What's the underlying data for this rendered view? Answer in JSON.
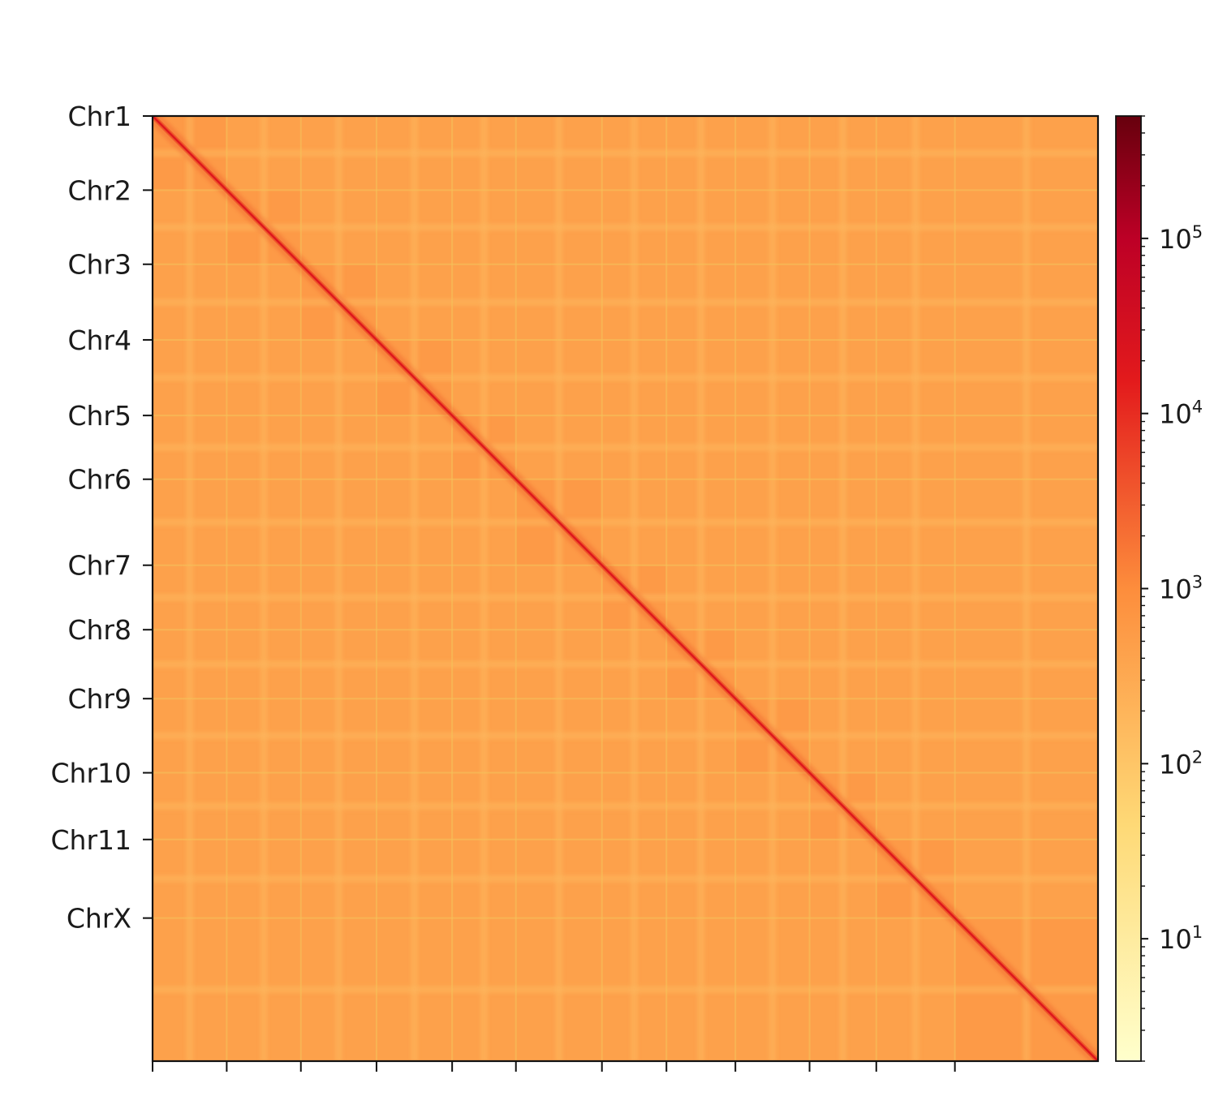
{
  "chart_data": {
    "type": "heatmap",
    "title": "",
    "xlabel": "",
    "ylabel": "",
    "chromosomes": [
      "Chr1",
      "Chr2",
      "Chr3",
      "Chr4",
      "Chr5",
      "Chr6",
      "Chr7",
      "Chr8",
      "Chr9",
      "Chr10",
      "Chr11",
      "ChrX"
    ],
    "x_tick_labels": [],
    "relative_lengths": [
      1.0,
      1.0,
      1.02,
      1.02,
      0.86,
      1.16,
      0.87,
      0.93,
      1.0,
      0.9,
      1.06,
      1.93
    ],
    "colorbar": {
      "scale": "log",
      "colormap": "YlOrRd",
      "range": [
        2,
        500000
      ],
      "tick_labels": [
        {
          "base": "10",
          "exp": "1",
          "value": 10
        },
        {
          "base": "10",
          "exp": "2",
          "value": 100
        },
        {
          "base": "10",
          "exp": "3",
          "value": 1000
        },
        {
          "base": "10",
          "exp": "4",
          "value": 10000
        },
        {
          "base": "10",
          "exp": "5",
          "value": 100000
        }
      ]
    },
    "values_summary": {
      "diagonal_intensity": 20000,
      "intra_chromosome_background": 600,
      "inter_chromosome_background": 450,
      "centromere_band_intensity": 180,
      "centromere_positions_fraction": [
        0.5,
        0.5,
        0.5,
        0.5,
        0.5,
        0.5,
        0.5,
        0.5,
        0.5,
        0.5,
        0.5,
        0.5
      ]
    }
  }
}
